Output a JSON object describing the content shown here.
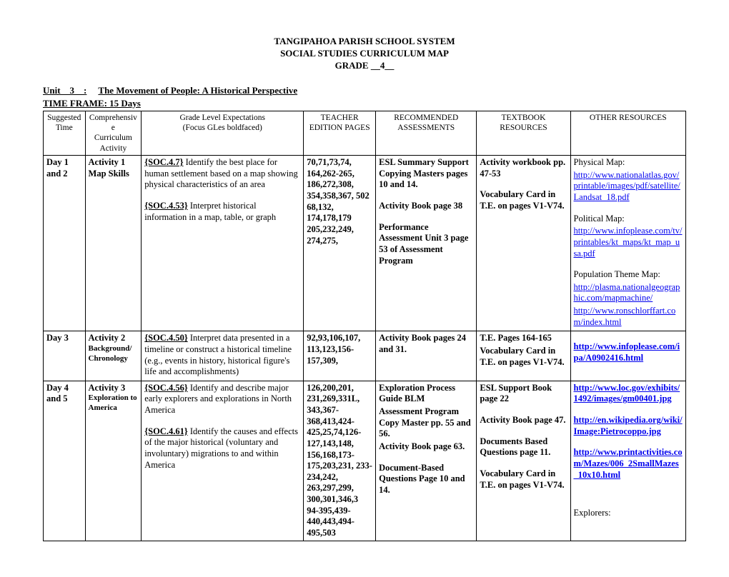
{
  "header": {
    "line1": "TANGIPAHOA PARISH SCHOOL SYSTEM",
    "line2": "SOCIAL STUDIES CURRICULUM MAP",
    "line3": "GRADE __4__"
  },
  "unit": {
    "label": "Unit__3__:",
    "title": "The Movement of People: A Historical Perspective",
    "timeframe": "TIME FRAME:    15 Days"
  },
  "columns": {
    "c1a": "Suggested",
    "c1b": "Time",
    "c2a": "Comprehensive",
    "c2b": "Curriculum",
    "c2c": "Activity",
    "c3a": "Grade Level Expectations",
    "c3b": "(Focus GLes boldfaced)",
    "c4a": "TEACHER",
    "c4b": "EDITION PAGES",
    "c5a": "RECOMMENDED",
    "c5b": "ASSESSMENTS",
    "c6a": "TEXTBOOK",
    "c6b": "RESOURCES",
    "c7": "OTHER RESOURCES"
  },
  "rows": [
    {
      "time": "Day 1 and 2",
      "activity_title": "Activity 1",
      "activity_sub": "Map Skills",
      "gle": {
        "code1": "{SOC.4.7}",
        "text1": " Identify the best place for human settlement based on a map showing physical characteristics of an area",
        "code2": "{SOC.4.53}",
        "text2": " Interpret historical information in a map, table, or graph"
      },
      "tep": "70,71,73,74, 164,262-265, 186,272,308, 354,358,367, 502\n68,132, 174,178,179\n205,232,249, 274,275,",
      "assess": {
        "p1": "ESL Summary Support Copying Masters pages 10 and 14.",
        "p2": "Activity Book page 38",
        "p3": "Performance Assessment Unit 3 page 53 of Assessment Program"
      },
      "textbook": {
        "p1": "Activity workbook pp. 47-53",
        "p2": "Vocabulary Card in T.E. on pages V1-V74."
      },
      "resources": {
        "l1_label": "Physical Map:",
        "l1_url": "http://www.nationalatlas.gov/printable/images/pdf/satellite/Landsat_18.pdf",
        "l2_label": "Political Map:",
        "l2_url": "http://www.infoplease.com/tv/printables/kt_maps/kt_map_usa.pdf",
        "l3_label": "Population Theme Map:",
        "l3_url": "http://plasma.nationalgeographic.com/mapmachine/",
        "l4_url": "http://www.ronschlorffart.com/index.html"
      }
    },
    {
      "time": "Day 3",
      "activity_title": "Activity 2",
      "activity_sub": "Background/ Chronology",
      "gle": {
        "code1": "{SOC.4.50}",
        "text1": " Interpret data presented in a timeline or construct a historical timeline (e.g., events in history, historical figure's life and accomplishments)"
      },
      "tep": "92,93,106,107, 113,123,156-157,309,",
      "assess": {
        "p1": "Activity Book pages 24 and 31."
      },
      "textbook": {
        "p1": "T.E. Pages 164-165",
        "p2": "Vocabulary Card in T.E. on pages V1-V74."
      },
      "resources": {
        "l1_url": "http://www.infoplease.com/ipa/A0902416.html"
      }
    },
    {
      "time": "Day 4 and 5",
      "activity_title": "Activity 3",
      "activity_sub": "Exploration to America",
      "gle": {
        "code1": "{SOC.4.56}",
        "text1": " Identify and describe major early explorers and explorations in North America",
        "code2": " {SOC.4.61}",
        "text2": " Identify the causes and effects of the major historical (voluntary and involuntary) migrations to and within America"
      },
      "tep": "126,200,201, 231,269,331L, 343,367-368,413,424-425,25,74,126-127,143,148, 156,168,173-175,203,231, 233-234,242, 263,297,299, 300,301,346,3\n94-395,439-440,443,494-495,503",
      "assess": {
        "p1": "Exploration Process Guide BLM",
        "p2": "Assessment Program Copy Master pp. 55 and 56.",
        "p3": "Activity Book page 63.",
        "p4": "Document-Based Questions Page 10 and 14."
      },
      "textbook": {
        "p1": "ESL Support Book page 22",
        "p2": "Activity Book page 47.",
        "p3": "Documents Based Questions page 11.",
        "p4": "Vocabulary Card in T.E. on pages V1-V74."
      },
      "resources": {
        "l1_url": "http://www.loc.gov/exhibits/1492/images/gm00401.jpg",
        "l2_url": "http://en.wikipedia.org/wiki/Image:Pietrocoppo.jpg",
        "l3_url": "http://www.printactivities.com/Mazes/006_2SmallMazes_10x10.html",
        "trail": "Explorers:"
      }
    }
  ]
}
